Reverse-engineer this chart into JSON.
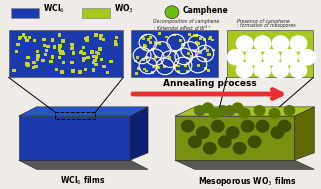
{
  "bg_color": "#f0ede8",
  "legend": {
    "wcl6_color": "#1a3aad",
    "wo3_color": "#a8c820",
    "camphene_color": "#6abf10",
    "wcl6_label": "WCl$_6$",
    "wo3_label": "WO$_3$",
    "camphene_label": "Camphene"
  },
  "panel1_bg": "#1a3aad",
  "panel1_dot": "#c8d818",
  "panel2_bg": "#1a3aad",
  "panel2_dot": "#c8d818",
  "panel2_circle": "#ffffff",
  "panel3_bg": "#a8c820",
  "panel3_hole": "#f0ede8",
  "arrow_color": "#e83030",
  "arrow_text": "Annealing process",
  "text1_line1": "Decomposition of camphene",
  "text1_line2": ": Kirkendal effect of W$^{4+}$",
  "text2_line1": "Presence of camphene",
  "text2_line2": ": formation of mesopores",
  "label_left": "WCl$_6$ films",
  "label_right": "Mesoporous WO$_3$ films",
  "box_left_top": "#2855cc",
  "box_left_front": "#1a3aad",
  "box_left_side": "#0d2070",
  "box_left_bottom": "#3d3d3d",
  "box_right_top": "#a8c820",
  "box_right_front": "#7a9010",
  "box_right_side": "#606808",
  "box_right_bottom": "#3d3d3d"
}
